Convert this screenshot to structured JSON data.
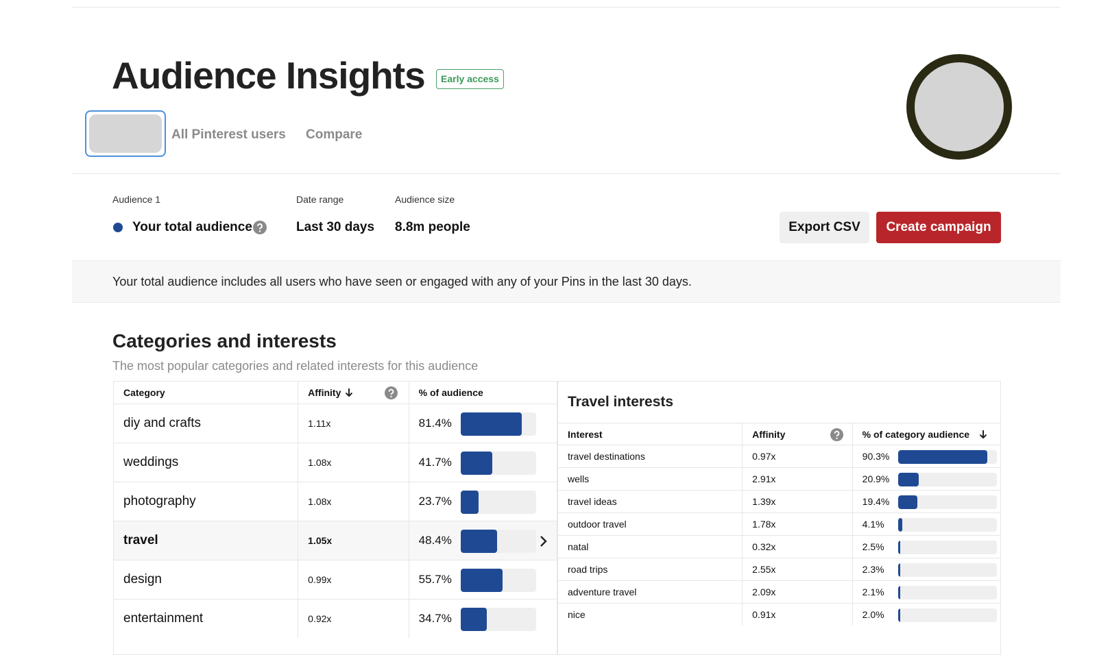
{
  "header": {
    "title": "Audience Insights",
    "badge": "Early access"
  },
  "tabs": [
    "All Pinterest users",
    "Compare"
  ],
  "audience": {
    "label": "Audience 1",
    "value": "Your total audience"
  },
  "date_range": {
    "label": "Date range",
    "value": "Last 30 days"
  },
  "audience_size": {
    "label": "Audience size",
    "value": "8.8m people"
  },
  "buttons": [
    "Export CSV",
    "Create campaign"
  ],
  "note": "Your total audience includes all users who have seen or engaged with any of your Pins in the last 30 days.",
  "categories": {
    "title": "Categories and interests",
    "subtitle": "The most popular categories and related interests for this audience",
    "headers": [
      "Category",
      "Affinity",
      "% of audience"
    ],
    "rows": [
      {
        "name": "diy and crafts",
        "affinity": "1.11x",
        "pct": 81.4,
        "pct_label": "81.4%"
      },
      {
        "name": "weddings",
        "affinity": "1.08x",
        "pct": 41.7,
        "pct_label": "41.7%"
      },
      {
        "name": "photography",
        "affinity": "1.08x",
        "pct": 23.7,
        "pct_label": "23.7%"
      },
      {
        "name": "travel",
        "affinity": "1.05x",
        "pct": 48.4,
        "pct_label": "48.4%"
      },
      {
        "name": "design",
        "affinity": "0.99x",
        "pct": 55.7,
        "pct_label": "55.7%"
      },
      {
        "name": "entertainment",
        "affinity": "0.92x",
        "pct": 34.7,
        "pct_label": "34.7%"
      }
    ]
  },
  "interests": {
    "title": "Travel interests",
    "headers": [
      "Interest",
      "Affinity",
      "% of category audience"
    ],
    "rows": [
      {
        "name": "travel destinations",
        "affinity": "0.97x",
        "pct": 90.3,
        "pct_label": "90.3%"
      },
      {
        "name": "wells",
        "affinity": "2.91x",
        "pct": 20.9,
        "pct_label": "20.9%"
      },
      {
        "name": "travel ideas",
        "affinity": "1.39x",
        "pct": 19.4,
        "pct_label": "19.4%"
      },
      {
        "name": "outdoor travel",
        "affinity": "1.78x",
        "pct": 4.1,
        "pct_label": "4.1%"
      },
      {
        "name": "natal",
        "affinity": "0.32x",
        "pct": 2.5,
        "pct_label": "2.5%"
      },
      {
        "name": "road trips",
        "affinity": "2.55x",
        "pct": 2.3,
        "pct_label": "2.3%"
      },
      {
        "name": "adventure travel",
        "affinity": "2.09x",
        "pct": 2.1,
        "pct_label": "2.1%"
      },
      {
        "name": "nice",
        "affinity": "0.91x",
        "pct": 2.0,
        "pct_label": "2.0%"
      }
    ]
  }
}
